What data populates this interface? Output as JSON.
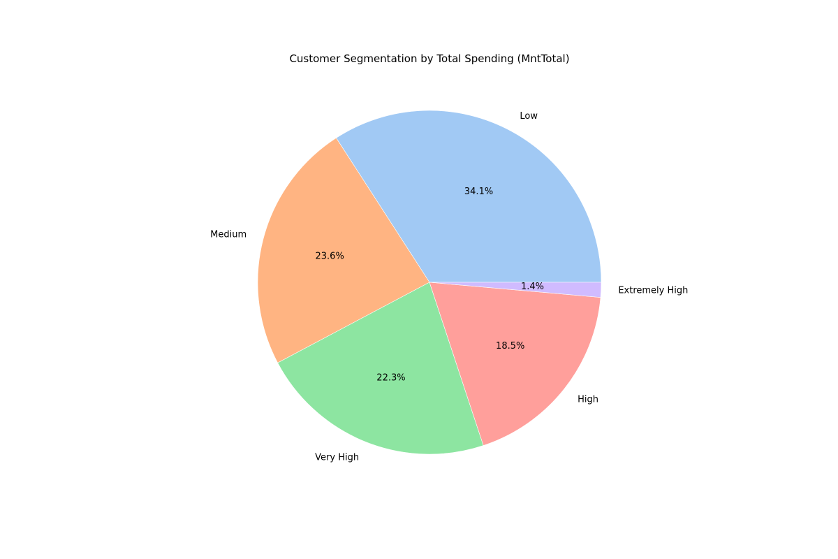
{
  "chart_data": {
    "type": "pie",
    "title": "Customer Segmentation by Total Spending (MntTotal)",
    "start_angle_deg": 0,
    "direction": "counterclockwise",
    "slices": [
      {
        "label": "Low",
        "value": 34.1,
        "pct_label": "34.1%",
        "color": "#a1c9f4"
      },
      {
        "label": "Medium",
        "value": 23.6,
        "pct_label": "23.6%",
        "color": "#ffb482"
      },
      {
        "label": "Very High",
        "value": 22.3,
        "pct_label": "22.3%",
        "color": "#8de5a1"
      },
      {
        "label": "High",
        "value": 18.5,
        "pct_label": "18.5%",
        "color": "#ff9f9b"
      },
      {
        "label": "Extremely High",
        "value": 1.4,
        "pct_label": "1.4%",
        "color": "#d0bbff"
      }
    ]
  }
}
